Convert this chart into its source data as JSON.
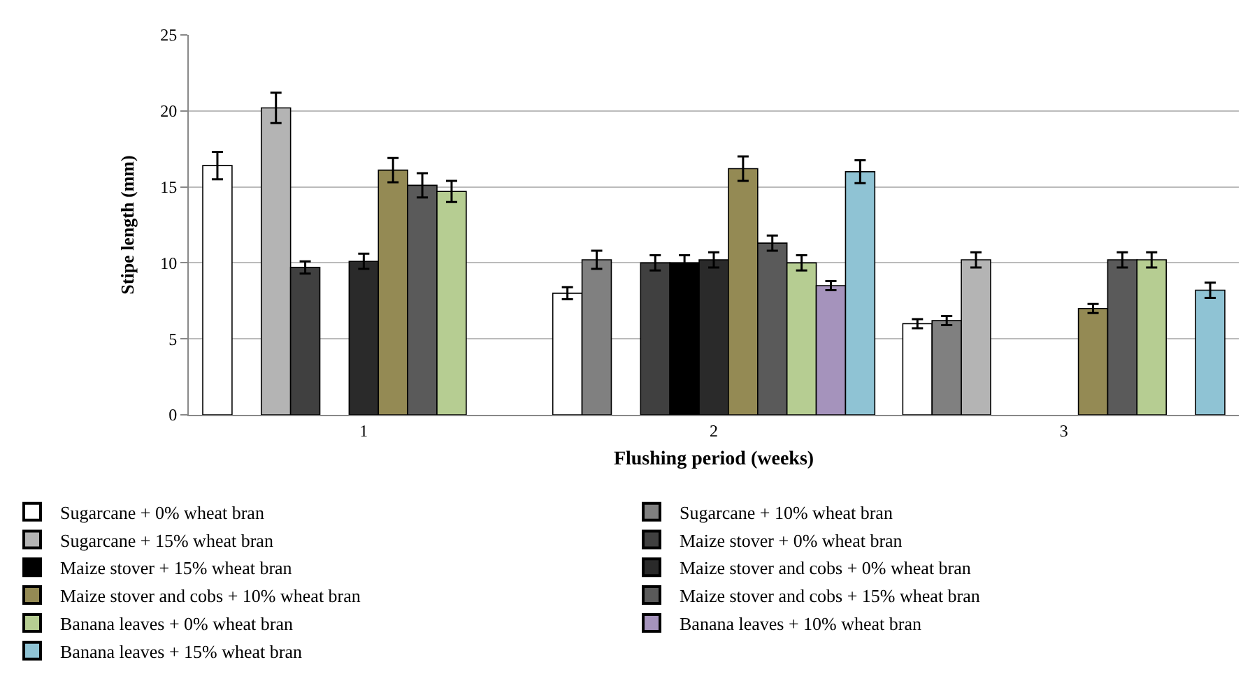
{
  "chart_data": {
    "type": "bar",
    "xlabel": "Flushing period (weeks)",
    "ylabel": "Stipe length (mm)",
    "categories": [
      "1",
      "2",
      "3"
    ],
    "ylim": [
      0,
      25
    ],
    "yticks": [
      0,
      5,
      10,
      15,
      20,
      25
    ],
    "grid": "y",
    "legend": "bottom",
    "series": [
      {
        "name": "Sugarcane + 0% wheat bran",
        "color": "#ffffff",
        "values": [
          16.4,
          8.0,
          6.0
        ],
        "errors": [
          0.9,
          0.4,
          0.3
        ]
      },
      {
        "name": "Sugarcane + 10% wheat bran",
        "color": "#808080",
        "values": [
          null,
          10.2,
          6.2
        ],
        "errors": [
          null,
          0.6,
          0.3
        ]
      },
      {
        "name": "Sugarcane + 15% wheat bran",
        "color": "#b4b4b4",
        "values": [
          20.2,
          null,
          10.2
        ],
        "errors": [
          1.0,
          null,
          0.5
        ]
      },
      {
        "name": "Maize stover + 0% wheat bran",
        "color": "#404040",
        "values": [
          9.7,
          10.0,
          null
        ],
        "errors": [
          0.4,
          0.5,
          null
        ]
      },
      {
        "name": "Maize stover + 15% wheat bran",
        "color": "#000000",
        "values": [
          null,
          10.0,
          null
        ],
        "errors": [
          null,
          0.5,
          null
        ]
      },
      {
        "name": "Maize stover and cobs + 0% wheat bran",
        "color": "#2a2a2a",
        "values": [
          10.1,
          10.2,
          null
        ],
        "errors": [
          0.5,
          0.5,
          null
        ]
      },
      {
        "name": "Maize stover and cobs + 10% wheat bran",
        "color": "#948a54",
        "values": [
          16.1,
          16.2,
          7.0
        ],
        "errors": [
          0.8,
          0.8,
          0.3
        ]
      },
      {
        "name": "Maize stover and cobs + 15% wheat bran",
        "color": "#5a5a5a",
        "values": [
          15.1,
          11.3,
          10.2
        ],
        "errors": [
          0.8,
          0.5,
          0.5
        ]
      },
      {
        "name": "Banana leaves + 0% wheat bran",
        "color": "#b6cd92",
        "values": [
          14.7,
          10.0,
          10.2
        ],
        "errors": [
          0.7,
          0.5,
          0.5
        ]
      },
      {
        "name": "Banana leaves + 10% wheat bran",
        "color": "#a593bc",
        "values": [
          null,
          8.5,
          null
        ],
        "errors": [
          null,
          0.3,
          null
        ]
      },
      {
        "name": "Banana leaves + 15% wheat bran",
        "color": "#8fc3d4",
        "values": [
          null,
          16.0,
          8.2
        ],
        "errors": [
          null,
          0.75,
          0.5
        ]
      }
    ]
  }
}
